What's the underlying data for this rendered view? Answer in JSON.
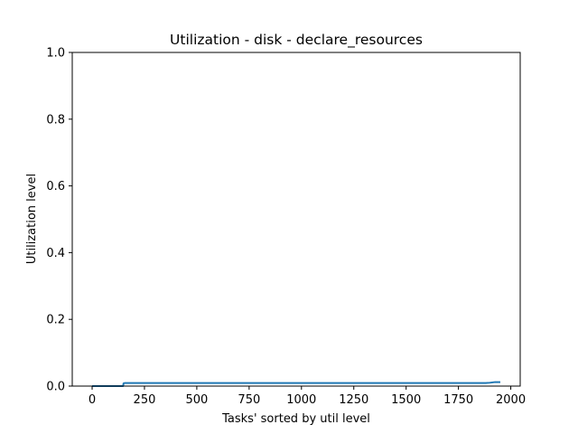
{
  "chart_data": {
    "type": "line",
    "title": "Utilization - disk - declare_resources",
    "xlabel": "Tasks' sorted by util level",
    "ylabel": "Utilization level",
    "xlim": [
      -95,
      2045
    ],
    "ylim": [
      0,
      1.0
    ],
    "x_ticks": [
      0,
      250,
      500,
      750,
      1000,
      1250,
      1500,
      1750,
      2000
    ],
    "y_ticks": [
      0.0,
      0.2,
      0.4,
      0.6,
      0.8,
      1.0
    ],
    "x_tick_labels": [
      "0",
      "250",
      "500",
      "750",
      "1000",
      "1250",
      "1500",
      "1750",
      "2000"
    ],
    "y_tick_labels": [
      "0.0",
      "0.2",
      "0.4",
      "0.6",
      "0.8",
      "1.0"
    ],
    "grid": false,
    "series": [
      {
        "color": "#1f77b4",
        "x": [
          0,
          148,
          150,
          155,
          500,
          1000,
          1500,
          1880,
          1900,
          1925,
          1950
        ],
        "y": [
          0.0,
          0.0,
          0.008,
          0.009,
          0.009,
          0.009,
          0.009,
          0.009,
          0.01,
          0.012,
          0.012
        ]
      }
    ]
  }
}
